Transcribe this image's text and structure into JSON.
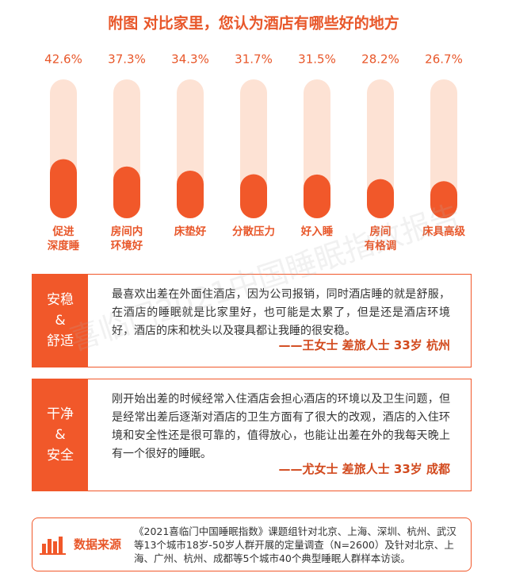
{
  "chart_data": {
    "type": "capsule-bar",
    "title": "附图 对比家里，您认为酒店有哪些好的地方",
    "categories": [
      "促进\n深度睡",
      "房间内\n环境好",
      "床垫好",
      "分散压力",
      "好入睡",
      "房间\n有格调",
      "床具高级"
    ],
    "values": [
      42.6,
      37.3,
      34.3,
      31.7,
      31.5,
      28.2,
      26.7
    ],
    "value_labels": [
      "42.6%",
      "37.3%",
      "34.3%",
      "31.7%",
      "31.5%",
      "28.2%",
      "26.7%"
    ],
    "ylim": [
      0,
      100
    ],
    "color": "#f1582a",
    "track_color": "#fde2d4"
  },
  "quotes": [
    {
      "tag": "安稳\n&\n舒适",
      "text": "最喜欢出差在外面住酒店，因为公司报销，同时酒店睡的就是舒服，在酒店的睡眠就是比家里好，也可能是太累了，但是还是酒店环境好，酒店的床和枕头以及寝具都让我睡的很安稳。",
      "author": "——王女士 差旅人士 33岁 杭州"
    },
    {
      "tag": "干净\n&\n安全",
      "text": "刚开始出差的时候经常入住酒店会担心酒店的环境以及卫生问题，但是经常出差后逐渐对酒店的卫生方面有了很大的改观，酒店的入住环境和安全性还是很可靠的，值得放心，也能让出差在外的我每天晚上有一个很好的睡眠。",
      "author": "——尤女士 差旅人士 33岁 成都"
    }
  ],
  "source": {
    "label": "数据来源",
    "text": "《2021喜临门中国睡眠指数》课题组针对北京、上海、深圳、杭州、武汉等13个城市18岁-50岁人群开展的定量调查（N=2600）及针对北京、上海、广州、杭州、成都等5个城市40个典型睡眠人群样本访谈。"
  },
  "watermark": "喜临门2021中国睡眠指数报告"
}
